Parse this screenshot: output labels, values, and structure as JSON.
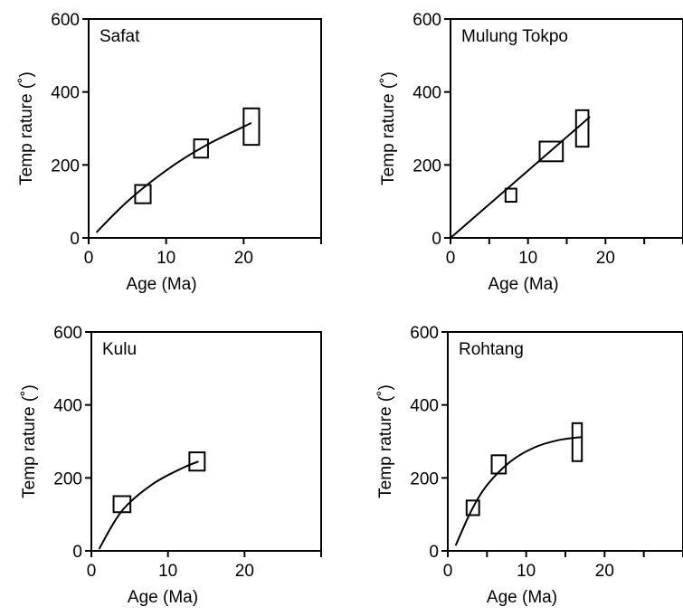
{
  "chart_data": [
    {
      "type": "scatter",
      "title": "Safat",
      "xlabel": "Age (Ma)",
      "ylabel": "Temp rature (˚)",
      "xlim": [
        0,
        30
      ],
      "ylim": [
        0,
        600
      ],
      "xticks": [
        0,
        10,
        20,
        30
      ],
      "xtick_labels": [
        "0",
        "10",
        "20",
        ""
      ],
      "yticks": [
        0,
        200,
        400,
        600
      ],
      "ytick_labels": [
        "0",
        "200",
        "400",
        "600"
      ],
      "grid": false,
      "points": [
        {
          "x": 7,
          "y": 120,
          "x_err": 1,
          "y_err": 25
        },
        {
          "x": 14.5,
          "y": 245,
          "x_err": 0.9,
          "y_err": 25
        },
        {
          "x": 21,
          "y": 305,
          "x_err": 1,
          "y_err": 50
        }
      ],
      "curve": [
        [
          1,
          15
        ],
        [
          5,
          100
        ],
        [
          10,
          185
        ],
        [
          15,
          252
        ],
        [
          21,
          315
        ]
      ]
    },
    {
      "type": "scatter",
      "title": "Mulung Tokpo",
      "xlabel": "Age (Ma)",
      "ylabel": "Temp rature (˚)",
      "xlim": [
        0,
        30
      ],
      "ylim": [
        0,
        600
      ],
      "xticks": [
        0,
        5,
        10,
        15,
        20,
        25,
        30
      ],
      "xtick_labels": [
        "0",
        "",
        "10",
        "",
        "20",
        "",
        ""
      ],
      "yticks": [
        0,
        200,
        400,
        600
      ],
      "ytick_labels": [
        "0",
        "200",
        "400",
        "600"
      ],
      "grid": false,
      "points": [
        {
          "x": 7.8,
          "y": 117,
          "x_err": 0.7,
          "y_err": 18
        },
        {
          "x": 13,
          "y": 237,
          "x_err": 1.5,
          "y_err": 27
        },
        {
          "x": 17,
          "y": 300,
          "x_err": 0.8,
          "y_err": 50
        }
      ],
      "curve": [
        [
          0,
          0
        ],
        [
          18,
          332
        ]
      ]
    },
    {
      "type": "scatter",
      "title": "Kulu",
      "xlabel": "Age (Ma)",
      "ylabel": "Temp rature (˚)",
      "xlim": [
        0,
        30
      ],
      "ylim": [
        0,
        600
      ],
      "xticks": [
        0,
        10,
        20,
        30
      ],
      "xtick_labels": [
        "0",
        "10",
        "20",
        ""
      ],
      "yticks": [
        0,
        200,
        400,
        600
      ],
      "ytick_labels": [
        "0",
        "200",
        "400",
        "600"
      ],
      "grid": false,
      "points": [
        {
          "x": 4,
          "y": 128,
          "x_err": 1.1,
          "y_err": 22
        },
        {
          "x": 13.8,
          "y": 245,
          "x_err": 1,
          "y_err": 25
        }
      ],
      "curve": [
        [
          1,
          5
        ],
        [
          4,
          110
        ],
        [
          8,
          183
        ],
        [
          12,
          228
        ],
        [
          14,
          245
        ]
      ]
    },
    {
      "type": "scatter",
      "title": "Rohtang",
      "xlabel": "Age (Ma)",
      "ylabel": "Temp rature (˚)",
      "xlim": [
        0,
        30
      ],
      "ylim": [
        0,
        600
      ],
      "xticks": [
        0,
        5,
        10,
        15,
        20,
        25,
        30
      ],
      "xtick_labels": [
        "0",
        "",
        "10",
        "",
        "20",
        "",
        ""
      ],
      "yticks": [
        0,
        200,
        400,
        600
      ],
      "ytick_labels": [
        "0",
        "200",
        "400",
        "600"
      ],
      "grid": false,
      "points": [
        {
          "x": 3.2,
          "y": 118,
          "x_err": 0.8,
          "y_err": 20
        },
        {
          "x": 6.5,
          "y": 237,
          "x_err": 0.9,
          "y_err": 25
        },
        {
          "x": 16.5,
          "y": 298,
          "x_err": 0.6,
          "y_err": 52
        }
      ],
      "curve": [
        [
          1,
          15
        ],
        [
          3,
          110
        ],
        [
          5,
          180
        ],
        [
          8,
          245
        ],
        [
          11,
          283
        ],
        [
          14,
          303
        ],
        [
          17,
          312
        ]
      ]
    }
  ]
}
